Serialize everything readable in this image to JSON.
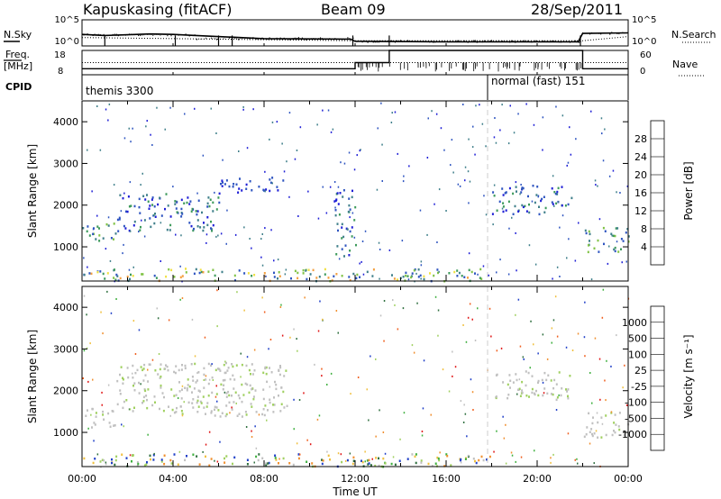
{
  "header": {
    "station": "Kapuskasing (fitACF)",
    "beam": "Beam 09",
    "date": "28/Sep/2011"
  },
  "panel_labels": {
    "nsky": "N.Sky",
    "nsearch": "N.Search",
    "freq": "Freq.",
    "freq_unit": "[MHz]",
    "nave": "Nave",
    "cpid": "CPID"
  },
  "cpid_segments": [
    {
      "label": "themis 3300"
    },
    {
      "label": "normal (fast) 151"
    }
  ],
  "chart_data": [
    {
      "type": "line",
      "name": "noise",
      "yscale": "log",
      "left_axis_ticks": [
        "10^5",
        "10^0"
      ],
      "right_axis_ticks": [
        "10^5",
        "10^0"
      ],
      "series": [
        {
          "name": "N.Sky",
          "style": "solid",
          "points": [
            [
              0,
              2.2
            ],
            [
              1,
              2.0
            ],
            [
              3,
              2.3
            ],
            [
              4,
              2.2
            ],
            [
              5,
              2.0
            ],
            [
              8,
              1.4
            ],
            [
              11.8,
              1.3
            ],
            [
              12,
              0.9
            ],
            [
              16,
              0.8
            ],
            [
              20,
              0.8
            ],
            [
              21.8,
              0.8
            ],
            [
              22,
              2.4
            ],
            [
              24,
              2.5
            ]
          ]
        },
        {
          "name": "N.Search",
          "style": "dotted",
          "points": [
            [
              0,
              1.6
            ],
            [
              12,
              1.0
            ],
            [
              22,
              1.0
            ],
            [
              24,
              1.8
            ]
          ]
        }
      ]
    },
    {
      "type": "line",
      "name": "frequency and nave",
      "left_axis_ticks": [
        "18",
        "8"
      ],
      "right_axis_ticks": [
        "60",
        "0"
      ],
      "series": [
        {
          "name": "Freq.",
          "style": "solid",
          "axis": "left",
          "points": [
            [
              0,
              10.5
            ],
            [
              12,
              10.5
            ],
            [
              12,
              13
            ],
            [
              13.5,
              13
            ],
            [
              13.5,
              18
            ],
            [
              22,
              18
            ],
            [
              22,
              10.5
            ],
            [
              24,
              10.5
            ]
          ]
        },
        {
          "name": "Nave",
          "style": "dotted",
          "axis": "right",
          "points": [
            [
              0,
              30
            ],
            [
              24,
              30
            ]
          ]
        }
      ]
    },
    {
      "type": "heatmap",
      "name": "power",
      "x_ticks": [
        "00:00",
        "04:00",
        "08:00",
        "12:00",
        "16:00",
        "20:00",
        "00:00"
      ],
      "xlim_hours": [
        0,
        24
      ],
      "ylabel": "Slant Range [km]",
      "y_ticks": [
        1000,
        2000,
        3000,
        4000
      ],
      "ylim": [
        180,
        4500
      ],
      "colorbar": {
        "label": "Power [dB]",
        "ticks": [
          "28",
          "24",
          "20",
          "16",
          "12",
          "8",
          "4"
        ],
        "colors": [
          "#1f1fd6",
          "#2f55c0",
          "#3f7f8a",
          "#3c9a5a",
          "#7fc244",
          "#f0e040",
          "#f4a040",
          "#f0602a",
          "#e01818"
        ]
      },
      "features": [
        {
          "hours": [
            0,
            1.5
          ],
          "range_km": [
            1100,
            1600
          ],
          "level": "medium"
        },
        {
          "hours": [
            1.5,
            6
          ],
          "range_km": [
            1400,
            2300
          ],
          "level": "low-medium"
        },
        {
          "hours": [
            6,
            9
          ],
          "range_km": [
            2300,
            2700
          ],
          "level": "low"
        },
        {
          "hours": [
            0,
            18
          ],
          "range_km": [
            200,
            500
          ],
          "level": "mixed-high"
        },
        {
          "hours": [
            11,
            12
          ],
          "range_km": [
            800,
            2400
          ],
          "level": "low-medium"
        },
        {
          "hours": [
            18,
            21.5
          ],
          "range_km": [
            1800,
            2500
          ],
          "level": "low-medium"
        },
        {
          "hours": [
            22,
            24
          ],
          "range_km": [
            900,
            1500
          ],
          "level": "medium"
        }
      ]
    },
    {
      "type": "heatmap",
      "name": "velocity",
      "x_ticks": [
        "00:00",
        "04:00",
        "08:00",
        "12:00",
        "16:00",
        "20:00",
        "00:00"
      ],
      "xlabel": "Time UT",
      "xlim_hours": [
        0,
        24
      ],
      "ylabel": "Slant Range [km]",
      "y_ticks": [
        1000,
        2000,
        3000,
        4000
      ],
      "ylim": [
        180,
        4500
      ],
      "colorbar": {
        "label": "Velocity [m s⁻¹]",
        "ticks": [
          "1000",
          "500",
          "100",
          "25",
          "-25",
          "-100",
          "-500",
          "-1000"
        ],
        "colors": [
          "#2040c8",
          "#307040",
          "#40b040",
          "#a0d060",
          "#c0c0c0",
          "#f0c040",
          "#f09030",
          "#f06020",
          "#e01818"
        ]
      },
      "features": [
        {
          "hours": [
            0,
            1.5
          ],
          "range_km": [
            1100,
            1600
          ],
          "level": "ground"
        },
        {
          "hours": [
            1.5,
            9
          ],
          "range_km": [
            1400,
            2700
          ],
          "level": "ground"
        },
        {
          "hours": [
            0,
            18
          ],
          "range_km": [
            200,
            500
          ],
          "level": "mixed"
        },
        {
          "hours": [
            18,
            21.5
          ],
          "range_km": [
            1800,
            2500
          ],
          "level": "ground"
        },
        {
          "hours": [
            22,
            24
          ],
          "range_km": [
            900,
            1500
          ],
          "level": "ground"
        }
      ]
    }
  ]
}
